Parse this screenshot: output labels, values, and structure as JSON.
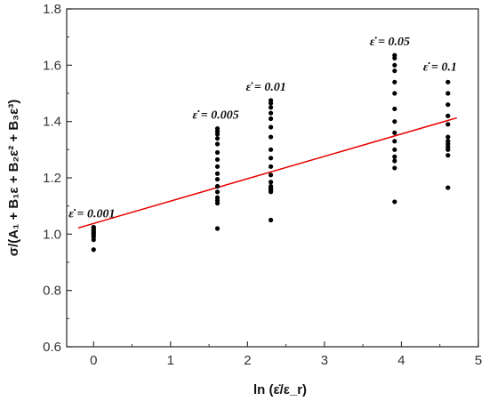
{
  "chart_data": {
    "type": "scatter",
    "title": "",
    "xlabel": "ln (ε̇/ε_r)",
    "ylabel": "σ/(A₁ + B₁ε + B₂ε² + B₃ε³)",
    "xlim": [
      -0.35,
      5.0
    ],
    "ylim": [
      0.6,
      1.8
    ],
    "xticks": [
      "0",
      "1",
      "2",
      "3",
      "4",
      "5"
    ],
    "yticks": [
      "0.6",
      "0.8",
      "1.0",
      "1.2",
      "1.4",
      "1.6",
      "1.8"
    ],
    "grid": false,
    "colors": {
      "points": "#000000",
      "fit_line": "#e60000",
      "axes": "#333333"
    },
    "series": [
      {
        "type": "scatter",
        "x": [
          0,
          0,
          0,
          0,
          0,
          0,
          0,
          0,
          0,
          0,
          1.609,
          1.609,
          1.609,
          1.609,
          1.609,
          1.609,
          1.609,
          1.609,
          1.609,
          1.609,
          1.609,
          1.609,
          1.609,
          1.609,
          1.609,
          1.609,
          2.303,
          2.303,
          2.303,
          2.303,
          2.303,
          2.303,
          2.303,
          2.303,
          2.303,
          2.303,
          2.303,
          2.303,
          2.303,
          2.303,
          2.303,
          2.303,
          2.303,
          2.303,
          3.912,
          3.912,
          3.912,
          3.912,
          3.912,
          3.912,
          3.912,
          3.912,
          3.912,
          3.912,
          3.912,
          3.912,
          3.912,
          3.912,
          3.912,
          4.605,
          4.605,
          4.605,
          4.605,
          4.605,
          4.605,
          4.605,
          4.605,
          4.605,
          4.605,
          4.605,
          4.605
        ],
        "y": [
          1.025,
          1.02,
          1.015,
          1.01,
          1.005,
          1.0,
          0.995,
          0.99,
          0.98,
          0.945,
          1.375,
          1.365,
          1.355,
          1.34,
          1.32,
          1.29,
          1.265,
          1.24,
          1.215,
          1.195,
          1.17,
          1.15,
          1.13,
          1.12,
          1.11,
          1.02,
          1.475,
          1.465,
          1.45,
          1.43,
          1.41,
          1.38,
          1.345,
          1.3,
          1.27,
          1.24,
          1.21,
          1.185,
          1.17,
          1.165,
          1.16,
          1.155,
          1.15,
          1.05,
          1.635,
          1.625,
          1.6,
          1.58,
          1.54,
          1.5,
          1.445,
          1.4,
          1.36,
          1.33,
          1.3,
          1.275,
          1.26,
          1.235,
          1.115,
          1.54,
          1.5,
          1.46,
          1.42,
          1.39,
          1.345,
          1.33,
          1.32,
          1.31,
          1.3,
          1.28,
          1.165
        ]
      },
      {
        "type": "line",
        "x": [
          -0.2,
          4.72
        ],
        "y": [
          1.022,
          1.413
        ]
      }
    ],
    "annotations": [
      {
        "text": "ε̇ = 0.001",
        "x": 0.0,
        "y": 1.06
      },
      {
        "text": "ε̇ = 0.005",
        "x": 1.609,
        "y": 1.41
      },
      {
        "text": "ε̇ = 0.01",
        "x": 2.303,
        "y": 1.51
      },
      {
        "text": "ε̇ = 0.05",
        "x": 3.912,
        "y": 1.67
      },
      {
        "text": "ε̇ = 0.1",
        "x": 4.605,
        "y": 1.58
      }
    ]
  }
}
